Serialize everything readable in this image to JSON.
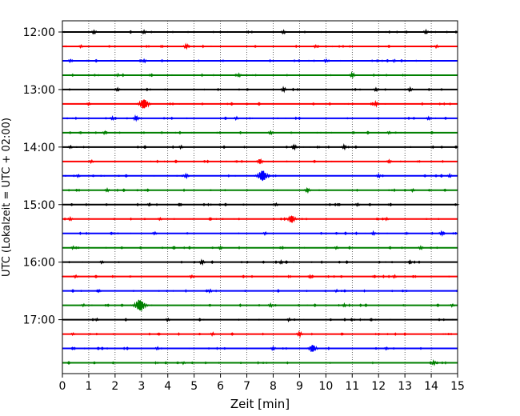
{
  "chart_data": {
    "type": "line",
    "title": "",
    "xlabel": "Zeit  [min]",
    "ylabel": "UTC (Lokalzeit = UTC + 02:00)",
    "xlim": [
      0,
      15
    ],
    "x_ticks": [
      0,
      1,
      2,
      3,
      4,
      5,
      6,
      7,
      8,
      9,
      10,
      11,
      12,
      13,
      14,
      15
    ],
    "y_ticks": [
      {
        "label": "12:00",
        "trace_index": 0
      },
      {
        "label": "13:00",
        "trace_index": 4
      },
      {
        "label": "14:00",
        "trace_index": 8
      },
      {
        "label": "15:00",
        "trace_index": 12
      },
      {
        "label": "16:00",
        "trace_index": 16
      },
      {
        "label": "17:00",
        "trace_index": 20
      }
    ],
    "grid": {
      "x": true,
      "y": false,
      "style": "dotted"
    },
    "color_cycle": [
      "#000000",
      "#ff0000",
      "#0000ff",
      "#008000"
    ],
    "trace_minutes": 15,
    "series": [
      {
        "start": "12:00",
        "color": "#000000",
        "events": [
          {
            "t": 1.2,
            "amp": 1.0
          },
          {
            "t": 3.1,
            "amp": 0.9
          },
          {
            "t": 8.4,
            "amp": 0.9
          },
          {
            "t": 13.8,
            "amp": 1.0
          }
        ]
      },
      {
        "start": "12:15",
        "color": "#ff0000",
        "events": [
          {
            "t": 0.7,
            "amp": 0.8
          },
          {
            "t": 4.7,
            "amp": 1.2
          },
          {
            "t": 9.6,
            "amp": 0.8
          },
          {
            "t": 14.2,
            "amp": 0.8
          }
        ]
      },
      {
        "start": "12:30",
        "color": "#0000ff",
        "events": [
          {
            "t": 0.3,
            "amp": 0.8
          },
          {
            "t": 3.1,
            "amp": 0.9
          },
          {
            "t": 10.0,
            "amp": 0.8
          },
          {
            "t": 12.6,
            "amp": 0.7
          }
        ]
      },
      {
        "start": "12:45",
        "color": "#008000",
        "events": [
          {
            "t": 2.1,
            "amp": 0.7
          },
          {
            "t": 6.7,
            "amp": 0.9
          },
          {
            "t": 11.0,
            "amp": 1.2
          }
        ]
      },
      {
        "start": "13:00",
        "color": "#000000",
        "events": [
          {
            "t": 2.1,
            "amp": 0.9
          },
          {
            "t": 8.4,
            "amp": 1.1
          },
          {
            "t": 11.9,
            "amp": 0.9
          },
          {
            "t": 13.2,
            "amp": 1.0
          }
        ]
      },
      {
        "start": "13:15",
        "color": "#ff0000",
        "events": [
          {
            "t": 1.0,
            "amp": 0.8
          },
          {
            "t": 3.1,
            "amp": 2.6
          },
          {
            "t": 11.9,
            "amp": 1.1
          }
        ]
      },
      {
        "start": "13:30",
        "color": "#0000ff",
        "events": [
          {
            "t": 1.9,
            "amp": 0.9
          },
          {
            "t": 2.8,
            "amp": 1.3
          },
          {
            "t": 6.6,
            "amp": 0.8
          },
          {
            "t": 13.9,
            "amp": 0.9
          }
        ]
      },
      {
        "start": "13:45",
        "color": "#008000",
        "events": [
          {
            "t": 1.6,
            "amp": 0.8
          },
          {
            "t": 7.9,
            "amp": 1.0
          },
          {
            "t": 12.4,
            "amp": 0.8
          }
        ]
      },
      {
        "start": "14:00",
        "color": "#000000",
        "events": [
          {
            "t": 0.3,
            "amp": 0.8
          },
          {
            "t": 4.5,
            "amp": 0.8
          },
          {
            "t": 8.8,
            "amp": 1.2
          },
          {
            "t": 10.7,
            "amp": 1.1
          }
        ]
      },
      {
        "start": "14:15",
        "color": "#ff0000",
        "events": [
          {
            "t": 1.1,
            "amp": 0.8
          },
          {
            "t": 7.5,
            "amp": 1.3
          },
          {
            "t": 12.4,
            "amp": 0.9
          }
        ]
      },
      {
        "start": "14:30",
        "color": "#0000ff",
        "events": [
          {
            "t": 0.6,
            "amp": 0.8
          },
          {
            "t": 4.7,
            "amp": 1.1
          },
          {
            "t": 7.6,
            "amp": 2.8
          },
          {
            "t": 12.0,
            "amp": 0.9
          },
          {
            "t": 14.7,
            "amp": 0.9
          }
        ]
      },
      {
        "start": "14:45",
        "color": "#008000",
        "events": [
          {
            "t": 1.7,
            "amp": 0.9
          },
          {
            "t": 9.3,
            "amp": 1.2
          },
          {
            "t": 13.3,
            "amp": 0.8
          }
        ]
      },
      {
        "start": "15:00",
        "color": "#000000",
        "events": [
          {
            "t": 3.3,
            "amp": 0.8
          },
          {
            "t": 8.1,
            "amp": 0.8
          },
          {
            "t": 11.2,
            "amp": 0.8
          }
        ]
      },
      {
        "start": "15:15",
        "color": "#ff0000",
        "events": [
          {
            "t": 0.3,
            "amp": 0.9
          },
          {
            "t": 3.7,
            "amp": 0.8
          },
          {
            "t": 8.7,
            "amp": 2.0
          },
          {
            "t": 12.3,
            "amp": 0.8
          }
        ]
      },
      {
        "start": "15:30",
        "color": "#0000ff",
        "events": [
          {
            "t": 3.5,
            "amp": 0.8
          },
          {
            "t": 7.7,
            "amp": 0.8
          },
          {
            "t": 11.8,
            "amp": 0.9
          },
          {
            "t": 14.4,
            "amp": 1.1
          }
        ]
      },
      {
        "start": "15:45",
        "color": "#008000",
        "events": [
          {
            "t": 0.4,
            "amp": 0.8
          },
          {
            "t": 6.0,
            "amp": 0.9
          },
          {
            "t": 10.4,
            "amp": 0.8
          },
          {
            "t": 13.6,
            "amp": 0.9
          }
        ]
      },
      {
        "start": "16:00",
        "color": "#000000",
        "events": [
          {
            "t": 1.5,
            "amp": 0.8
          },
          {
            "t": 5.3,
            "amp": 1.2
          },
          {
            "t": 8.3,
            "amp": 0.9
          },
          {
            "t": 13.2,
            "amp": 0.9
          }
        ]
      },
      {
        "start": "16:15",
        "color": "#ff0000",
        "events": [
          {
            "t": 0.5,
            "amp": 0.8
          },
          {
            "t": 4.9,
            "amp": 0.8
          },
          {
            "t": 9.4,
            "amp": 0.9
          },
          {
            "t": 12.6,
            "amp": 0.8
          }
        ]
      },
      {
        "start": "16:30",
        "color": "#0000ff",
        "events": [
          {
            "t": 1.4,
            "amp": 0.7
          },
          {
            "t": 5.6,
            "amp": 0.8
          },
          {
            "t": 10.4,
            "amp": 0.7
          }
        ]
      },
      {
        "start": "16:45",
        "color": "#008000",
        "events": [
          {
            "t": 0.8,
            "amp": 0.7
          },
          {
            "t": 2.95,
            "amp": 3.0
          },
          {
            "t": 7.9,
            "amp": 0.9
          },
          {
            "t": 10.7,
            "amp": 0.9
          },
          {
            "t": 14.8,
            "amp": 0.8
          }
        ]
      },
      {
        "start": "17:00",
        "color": "#000000",
        "events": [
          {
            "t": 1.3,
            "amp": 0.7
          },
          {
            "t": 4.0,
            "amp": 0.8
          },
          {
            "t": 8.6,
            "amp": 0.8
          }
        ]
      },
      {
        "start": "17:15",
        "color": "#ff0000",
        "events": [
          {
            "t": 0.4,
            "amp": 0.7
          },
          {
            "t": 5.7,
            "amp": 0.8
          },
          {
            "t": 9.0,
            "amp": 1.2
          }
        ]
      },
      {
        "start": "17:30",
        "color": "#0000ff",
        "events": [
          {
            "t": 3.6,
            "amp": 0.8
          },
          {
            "t": 8.0,
            "amp": 1.0
          },
          {
            "t": 9.5,
            "amp": 2.0
          },
          {
            "t": 12.3,
            "amp": 0.8
          }
        ]
      },
      {
        "start": "17:45",
        "color": "#008000",
        "events": [
          {
            "t": 4.6,
            "amp": 0.7
          },
          {
            "t": 14.1,
            "amp": 1.1
          }
        ]
      }
    ]
  }
}
